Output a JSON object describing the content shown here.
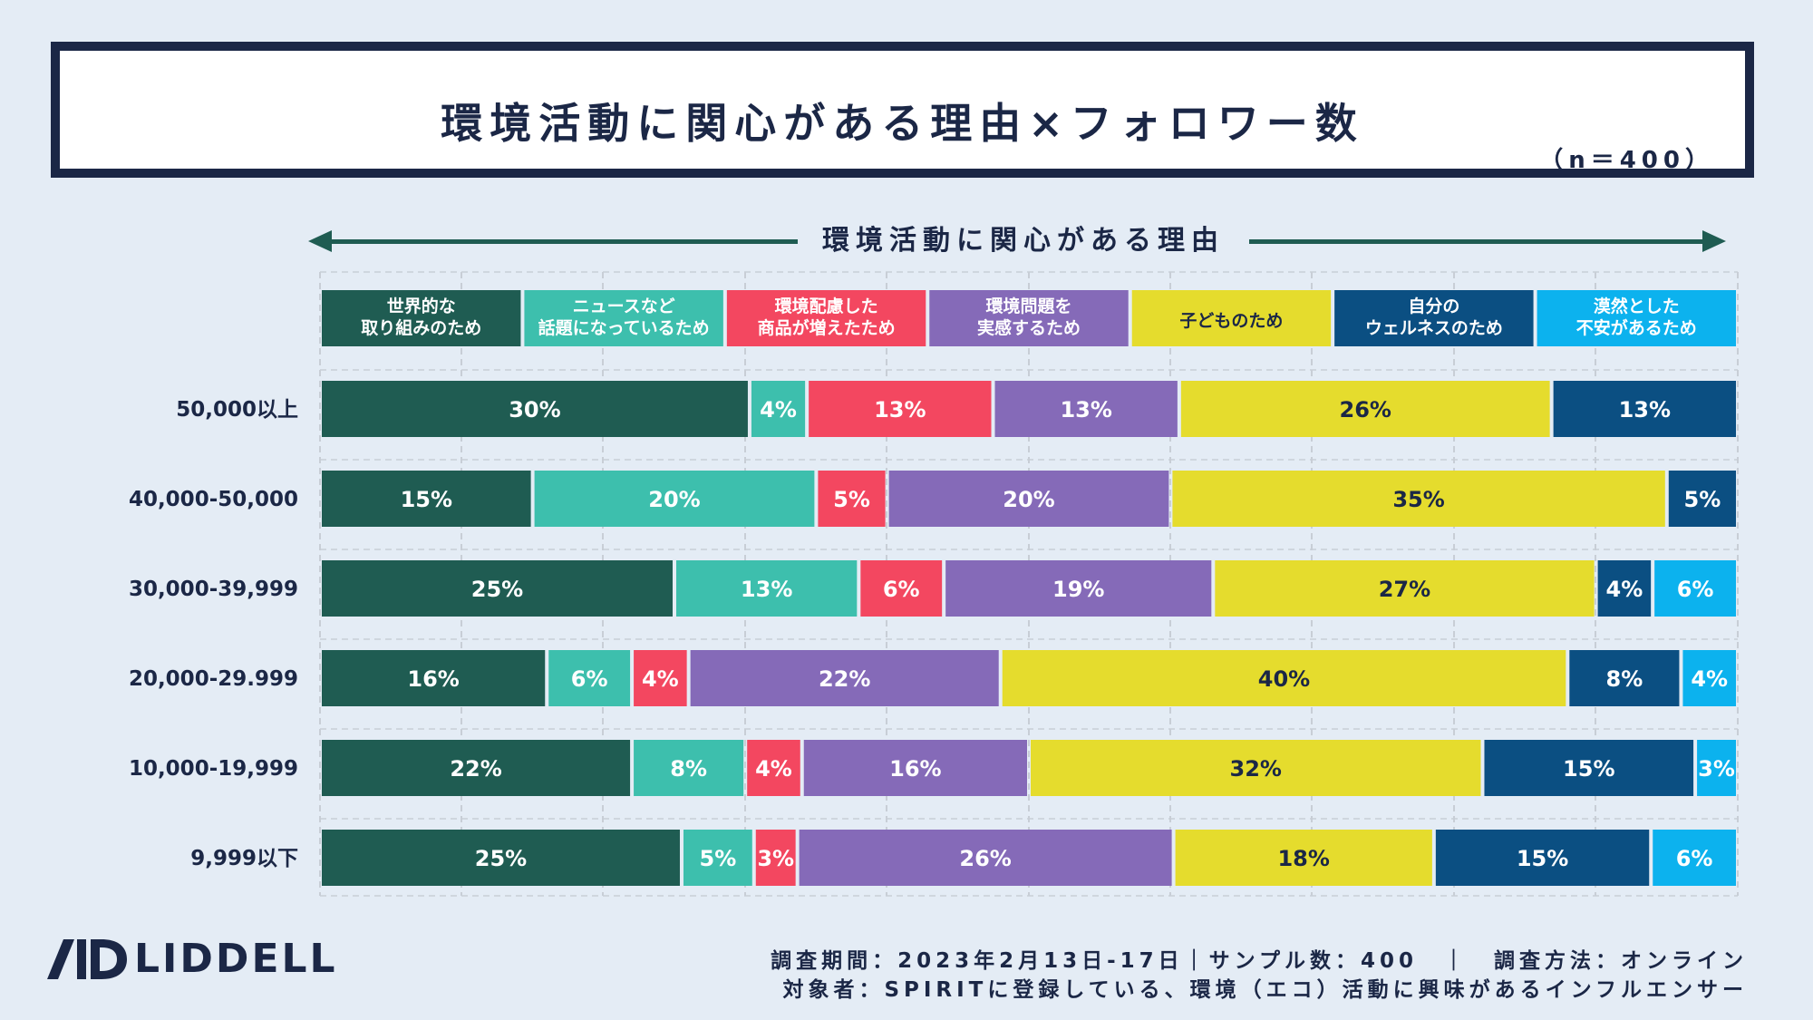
{
  "title": "環境活動に関心がある理由×フォロワー数",
  "sample_size": "（n＝400）",
  "axis_label": "環境活動に関心がある理由",
  "chart_data": {
    "type": "bar",
    "orientation": "horizontal-stacked-100",
    "categories": [
      "50,000以上",
      "40,000-50,000",
      "30,000-39,999",
      "20,000-29.999",
      "10,000-19,999",
      "9,999以下"
    ],
    "series": [
      {
        "name": "世界的な取り組みのため",
        "label_lines": [
          "世界的な",
          "取り組みのため"
        ],
        "color": "#1f5c52",
        "text_color": "#ffffff",
        "values": [
          30,
          15,
          25,
          16,
          22,
          25
        ]
      },
      {
        "name": "ニュースなど話題になっているため",
        "label_lines": [
          "ニュースなど",
          "話題になっているため"
        ],
        "color": "#3dbfad",
        "text_color": "#ffffff",
        "values": [
          4,
          20,
          13,
          6,
          8,
          5
        ]
      },
      {
        "name": "環境配慮した商品が増えたため",
        "label_lines": [
          "環境配慮した",
          "商品が増えたため"
        ],
        "color": "#f34760",
        "text_color": "#ffffff",
        "values": [
          13,
          5,
          6,
          4,
          4,
          3
        ]
      },
      {
        "name": "環境問題を実感するため",
        "label_lines": [
          "環境問題を",
          "実感するため"
        ],
        "color": "#856ab8",
        "text_color": "#ffffff",
        "values": [
          13,
          20,
          19,
          22,
          16,
          26
        ]
      },
      {
        "name": "子どものため",
        "label_lines": [
          "子どものため"
        ],
        "color": "#e5dc2d",
        "text_color": "#1b2746",
        "values": [
          26,
          35,
          27,
          40,
          32,
          18
        ]
      },
      {
        "name": "自分のウェルネスのため",
        "label_lines": [
          "自分の",
          "ウェルネスのため"
        ],
        "color": "#0b4f82",
        "text_color": "#ffffff",
        "values": [
          13,
          5,
          4,
          8,
          15,
          15
        ]
      },
      {
        "name": "漠然とした不安があるため",
        "label_lines": [
          "漠然とした",
          "不安があるため"
        ],
        "color": "#0cb2ee",
        "text_color": "#ffffff",
        "values": [
          0,
          0,
          6,
          4,
          3,
          6
        ]
      }
    ],
    "value_suffix": "%",
    "xlim": [
      0,
      100
    ],
    "grid": true
  },
  "footer": {
    "line1": "調査期間：2023年2月13日-17日｜サンプル数：400　｜　調査方法：オンライン",
    "line2": "対象者：SPIRITに登録している、環境（エコ）活動に興味があるインフルエンサー"
  },
  "logo": {
    "text": "LIDDELL"
  }
}
